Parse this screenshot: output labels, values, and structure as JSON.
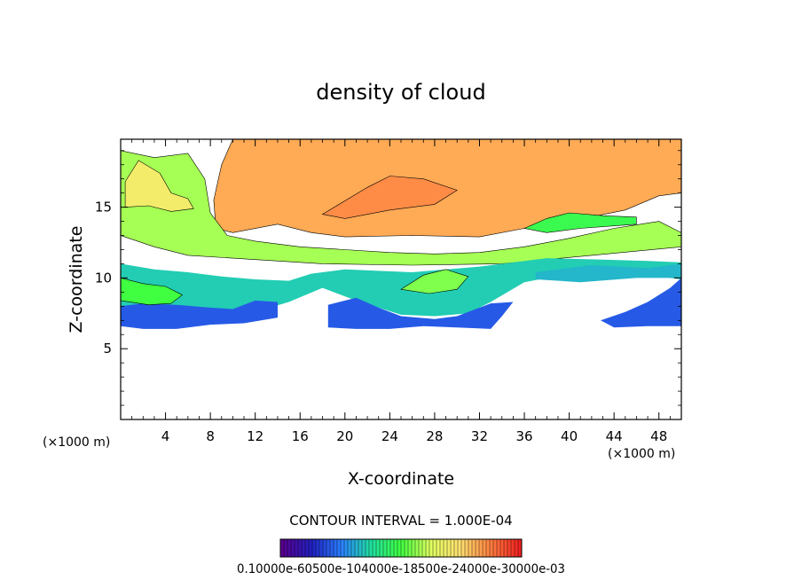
{
  "chart_data": {
    "type": "heatmap",
    "title": "density of cloud",
    "xlabel": "X-coordinate",
    "ylabel": "Z-coordinate",
    "x_unit_left": "(×1000 m)",
    "x_unit_right": "(×1000 m)",
    "xlim": [
      0,
      50
    ],
    "ylim": [
      0,
      19.8
    ],
    "xticks": [
      4,
      8,
      12,
      16,
      20,
      24,
      28,
      32,
      36,
      40,
      44,
      48
    ],
    "yticks": [
      5,
      10,
      15
    ],
    "contour_interval_label": "CONTOUR INTERVAL = 1.000E-04",
    "colorbar_labels_text": "0.10000e-60500e-104000e-18500e-24000e-30000e-03",
    "regions": [
      {
        "level": 0.82,
        "points": [
          [
            0,
            19.8
          ],
          [
            10,
            19.8
          ],
          [
            9,
            18
          ],
          [
            8.3,
            15.5
          ],
          [
            8.5,
            13.5
          ],
          [
            10,
            13.2
          ],
          [
            14,
            13.8
          ],
          [
            17,
            13.2
          ],
          [
            20,
            12.9
          ],
          [
            26,
            13
          ],
          [
            32,
            12.9
          ],
          [
            36,
            13.5
          ],
          [
            40,
            14
          ],
          [
            45,
            14.8
          ],
          [
            48,
            15.8
          ],
          [
            50,
            16
          ],
          [
            50,
            19.8
          ]
        ]
      },
      {
        "level": 0.58,
        "points": [
          [
            0,
            13
          ],
          [
            0,
            19
          ],
          [
            3,
            18.5
          ],
          [
            6,
            18.8
          ],
          [
            7.5,
            17
          ],
          [
            8,
            14.6
          ],
          [
            9.5,
            13
          ],
          [
            12,
            12.6
          ],
          [
            16,
            12.2
          ],
          [
            20,
            12
          ],
          [
            24,
            11.8
          ],
          [
            28,
            11.7
          ],
          [
            32,
            11.8
          ],
          [
            36,
            12.2
          ],
          [
            40,
            12.8
          ],
          [
            44,
            13.5
          ],
          [
            48,
            14
          ],
          [
            50,
            13.2
          ],
          [
            50,
            12.2
          ],
          [
            42,
            11.6
          ],
          [
            34,
            11
          ],
          [
            26,
            10.9
          ],
          [
            18,
            11
          ],
          [
            12,
            11.3
          ],
          [
            6,
            11.6
          ],
          [
            3,
            12.2
          ]
        ]
      },
      {
        "level": 0.35,
        "points": [
          [
            0,
            7.8
          ],
          [
            0,
            11
          ],
          [
            3,
            10.6
          ],
          [
            6,
            10.4
          ],
          [
            9,
            10.1
          ],
          [
            12,
            9.9
          ],
          [
            15,
            9.8
          ],
          [
            17,
            10.3
          ],
          [
            20,
            10.6
          ],
          [
            26,
            10.4
          ],
          [
            32,
            10.8
          ],
          [
            38,
            11.4
          ],
          [
            43,
            11.3
          ],
          [
            47,
            11.2
          ],
          [
            50,
            11.1
          ],
          [
            50,
            9.9
          ],
          [
            46,
            10.3
          ],
          [
            44,
            10.1
          ],
          [
            40,
            10.3
          ],
          [
            36,
            9.7
          ],
          [
            33,
            8.3
          ],
          [
            31,
            7.5
          ],
          [
            28,
            7.3
          ],
          [
            25,
            7.4
          ],
          [
            21,
            8.4
          ],
          [
            18,
            9.3
          ],
          [
            15,
            8.3
          ],
          [
            12,
            7.6
          ],
          [
            9,
            7.3
          ],
          [
            6,
            6.8
          ],
          [
            3,
            6.9
          ]
        ]
      },
      {
        "level": 0.2,
        "points": [
          [
            0,
            6.6
          ],
          [
            0,
            8
          ],
          [
            2,
            8.2
          ],
          [
            5,
            8.1
          ],
          [
            8,
            7.9
          ],
          [
            10,
            7.8
          ],
          [
            12,
            8.4
          ],
          [
            14,
            8.3
          ],
          [
            14,
            7.2
          ],
          [
            11,
            6.8
          ],
          [
            8,
            6.7
          ],
          [
            5,
            6.4
          ],
          [
            2,
            6.4
          ]
        ]
      },
      {
        "level": 0.2,
        "points": [
          [
            18.5,
            6.5
          ],
          [
            18.5,
            8.1
          ],
          [
            21,
            8.6
          ],
          [
            23,
            7.9
          ],
          [
            25,
            7.3
          ],
          [
            28,
            7.1
          ],
          [
            30,
            7.3
          ],
          [
            33,
            8.2
          ],
          [
            35,
            8.3
          ],
          [
            34,
            7.3
          ],
          [
            33,
            6.4
          ],
          [
            30,
            6.5
          ],
          [
            27,
            6.6
          ],
          [
            24,
            6.4
          ],
          [
            21,
            6.4
          ]
        ]
      },
      {
        "level": 0.2,
        "points": [
          [
            42.8,
            7
          ],
          [
            45,
            7.6
          ],
          [
            47,
            8.3
          ],
          [
            49,
            9.3
          ],
          [
            50,
            10
          ],
          [
            50,
            6.6
          ],
          [
            47,
            6.6
          ],
          [
            44,
            6.5
          ]
        ]
      },
      {
        "level": 0.32,
        "points": [
          [
            37,
            10.4
          ],
          [
            42,
            10.9
          ],
          [
            47,
            10.7
          ],
          [
            50,
            11
          ],
          [
            50,
            10
          ],
          [
            46,
            10
          ],
          [
            41,
            9.7
          ],
          [
            37,
            9.9
          ]
        ]
      },
      {
        "level": 0.5,
        "points": [
          [
            0,
            8.4
          ],
          [
            0,
            10
          ],
          [
            2,
            9.6
          ],
          [
            4,
            9.4
          ],
          [
            5.5,
            8.8
          ],
          [
            4.5,
            8.2
          ],
          [
            2.5,
            8.1
          ]
        ]
      },
      {
        "level": 0.7,
        "points": [
          [
            0.4,
            15
          ],
          [
            0.4,
            16.8
          ],
          [
            1.6,
            18.3
          ],
          [
            3.5,
            17.4
          ],
          [
            4.5,
            16
          ],
          [
            6,
            15.6
          ],
          [
            6.5,
            14.9
          ],
          [
            4.5,
            14.7
          ],
          [
            2.5,
            15.1
          ]
        ]
      },
      {
        "level": 0.86,
        "points": [
          [
            18,
            14.5
          ],
          [
            22,
            16.4
          ],
          [
            24,
            17.2
          ],
          [
            27,
            17
          ],
          [
            30,
            16.2
          ],
          [
            28,
            15.2
          ],
          [
            24,
            14.8
          ],
          [
            20,
            14.2
          ]
        ]
      },
      {
        "level": 0.48,
        "points": [
          [
            36,
            13.5
          ],
          [
            38,
            14.2
          ],
          [
            40,
            14.6
          ],
          [
            43,
            14.4
          ],
          [
            46,
            14.3
          ],
          [
            46,
            13.8
          ],
          [
            41,
            13.5
          ],
          [
            38,
            13.2
          ]
        ]
      },
      {
        "level": 0.55,
        "points": [
          [
            25,
            9.2
          ],
          [
            27,
            10.2
          ],
          [
            29,
            10.6
          ],
          [
            31,
            10.1
          ],
          [
            30,
            9.2
          ],
          [
            27.5,
            8.9
          ]
        ]
      }
    ],
    "colorbar_stops": [
      "#5a0090",
      "#2020c0",
      "#2a80ff",
      "#20e0a0",
      "#40ff40",
      "#e0ff60",
      "#ffe070",
      "#ff8040",
      "#f02020"
    ]
  }
}
